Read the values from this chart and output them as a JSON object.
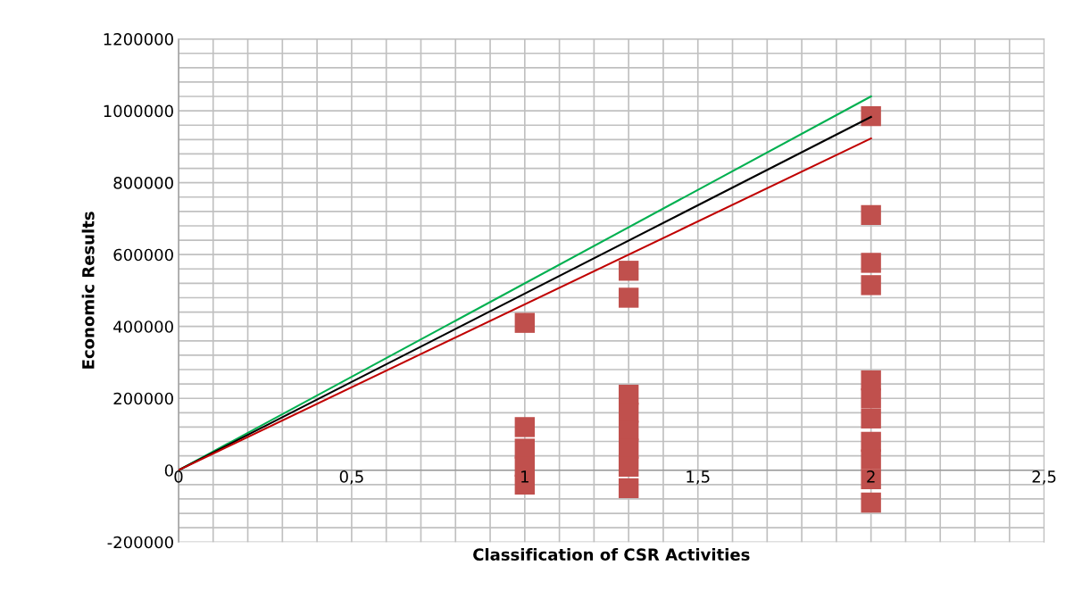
{
  "chart_data": {
    "type": "scatter",
    "xlabel": "Classification of CSR Activities",
    "ylabel": "Economic Results",
    "xlim": [
      0,
      2.5
    ],
    "ylim": [
      -200000,
      1200000
    ],
    "xticks": [
      {
        "value": 0,
        "label": "0"
      },
      {
        "value": 0.1,
        "label": null
      },
      {
        "value": 0.2,
        "label": null
      },
      {
        "value": 0.3,
        "label": null
      },
      {
        "value": 0.4,
        "label": null
      },
      {
        "value": 0.5,
        "label": "0,5"
      },
      {
        "value": 0.6,
        "label": null
      },
      {
        "value": 0.7,
        "label": null
      },
      {
        "value": 0.8,
        "label": null
      },
      {
        "value": 0.9,
        "label": null
      },
      {
        "value": 1,
        "label": "1"
      },
      {
        "value": 1.1,
        "label": null
      },
      {
        "value": 1.2,
        "label": null
      },
      {
        "value": 1.3,
        "label": null
      },
      {
        "value": 1.4,
        "label": null
      },
      {
        "value": 1.5,
        "label": "1,5"
      },
      {
        "value": 1.6,
        "label": null
      },
      {
        "value": 1.7,
        "label": null
      },
      {
        "value": 1.8,
        "label": null
      },
      {
        "value": 1.9,
        "label": null
      },
      {
        "value": 2,
        "label": "2"
      },
      {
        "value": 2.1,
        "label": null
      },
      {
        "value": 2.2,
        "label": null
      },
      {
        "value": 2.3,
        "label": null
      },
      {
        "value": 2.4,
        "label": null
      },
      {
        "value": 2.5,
        "label": "2,5"
      }
    ],
    "yticks": [
      -200000,
      {
        "value": -160000,
        "label": null
      },
      {
        "value": -120000,
        "label": null
      },
      {
        "value": -80000,
        "label": null
      },
      {
        "value": -40000,
        "label": null
      },
      0,
      {
        "value": 40000,
        "label": null
      },
      {
        "value": 80000,
        "label": null
      },
      {
        "value": 120000,
        "label": null
      },
      {
        "value": 160000,
        "label": null
      },
      200000,
      {
        "value": 240000,
        "label": null
      },
      {
        "value": 280000,
        "label": null
      },
      {
        "value": 320000,
        "label": null
      },
      {
        "value": 360000,
        "label": null
      },
      400000,
      {
        "value": 440000,
        "label": null
      },
      {
        "value": 480000,
        "label": null
      },
      {
        "value": 520000,
        "label": null
      },
      {
        "value": 560000,
        "label": null
      },
      600000,
      {
        "value": 640000,
        "label": null
      },
      {
        "value": 680000,
        "label": null
      },
      {
        "value": 720000,
        "label": null
      },
      {
        "value": 760000,
        "label": null
      },
      800000,
      {
        "value": 840000,
        "label": null
      },
      {
        "value": 880000,
        "label": null
      },
      {
        "value": 920000,
        "label": null
      },
      {
        "value": 960000,
        "label": null
      },
      1000000,
      {
        "value": 1040000,
        "label": null
      },
      {
        "value": 1080000,
        "label": null
      },
      {
        "value": 1120000,
        "label": null
      },
      {
        "value": 1160000,
        "label": null
      },
      1200000
    ],
    "grid": true,
    "legend": false,
    "series": [
      {
        "marker": "square",
        "color": "#c0504d",
        "x": [
          1,
          1,
          1,
          1,
          1,
          1.3,
          1.3,
          1.3,
          1.3,
          1.3,
          1.3,
          1.3,
          1.3,
          2,
          2,
          2,
          2,
          2,
          2,
          2,
          2,
          2,
          2,
          2
        ],
        "values": [
          410000,
          120000,
          60000,
          10000,
          -40000,
          555000,
          480000,
          210000,
          160000,
          110000,
          60000,
          10000,
          -50000,
          985000,
          710000,
          577000,
          515000,
          250000,
          200000,
          144000,
          79000,
          30000,
          -25000,
          -90000
        ]
      },
      {
        "type": "line",
        "marker": "none",
        "color": "#00b050",
        "x": [
          0,
          2
        ],
        "values": [
          0,
          1040000
        ]
      },
      {
        "type": "line",
        "marker": "none",
        "color": "#000000",
        "x": [
          0,
          2
        ],
        "values": [
          0,
          983000
        ]
      },
      {
        "type": "line",
        "marker": "none",
        "color": "#c00000",
        "x": [
          0,
          2
        ],
        "values": [
          0,
          923000
        ]
      }
    ]
  }
}
